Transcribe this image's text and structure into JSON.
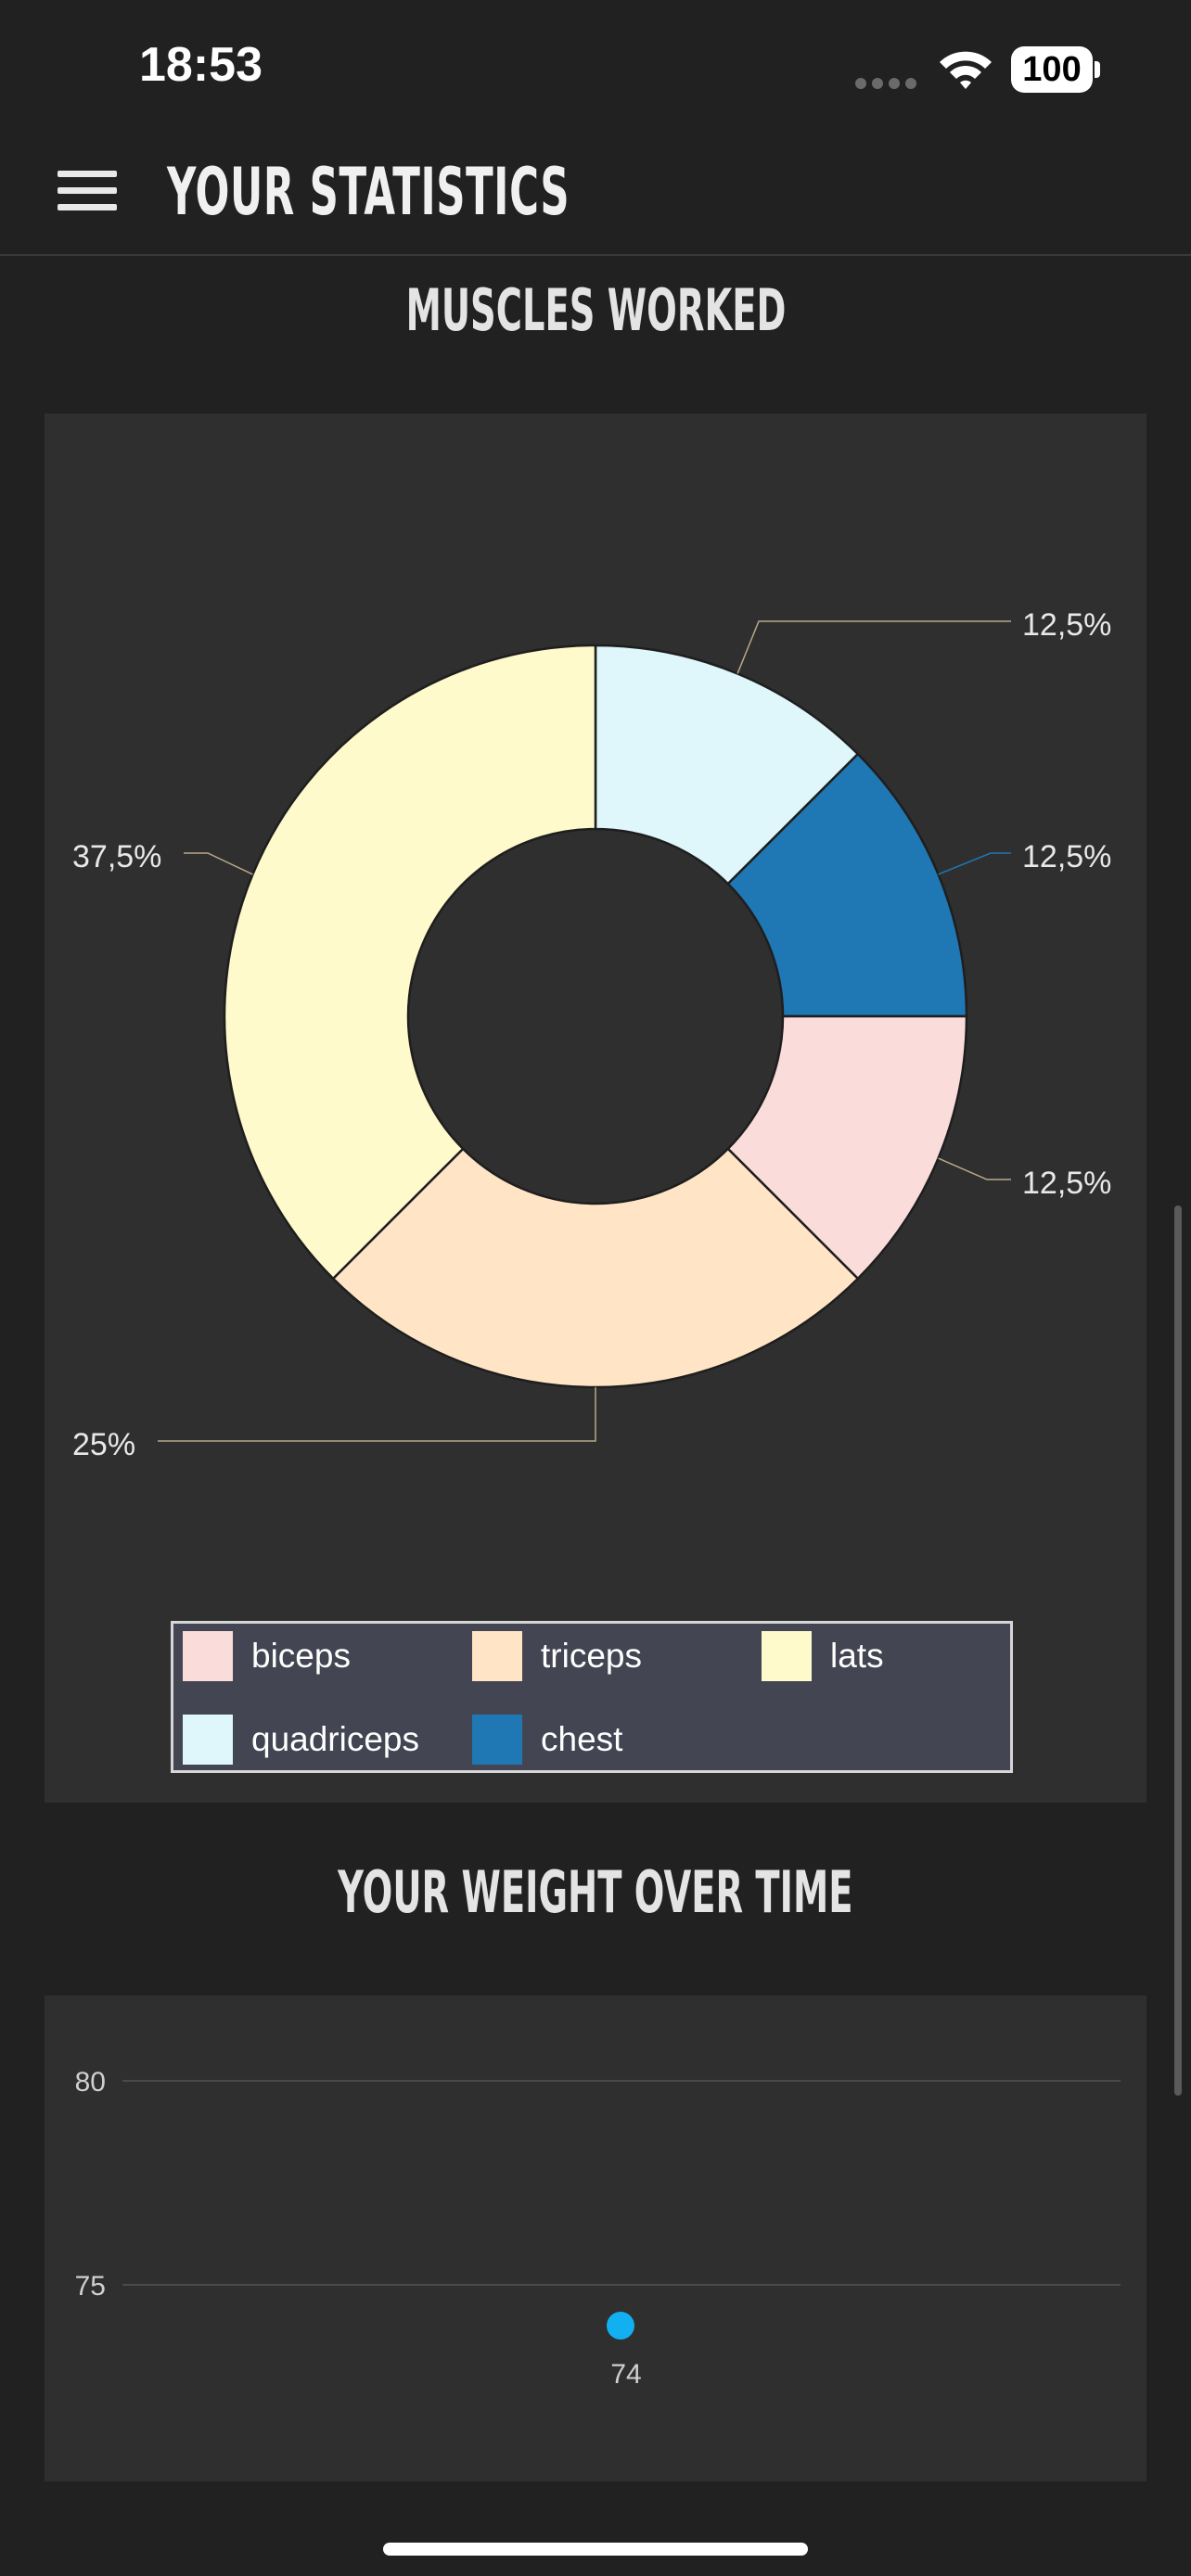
{
  "status_bar": {
    "time": "18:53",
    "battery": "100"
  },
  "header": {
    "title": "YOUR STATISTICS"
  },
  "muscles_section": {
    "title": "MUSCLES WORKED"
  },
  "weight_section": {
    "title": "YOUR WEIGHT OVER TIME"
  },
  "colors": {
    "biceps": "#fadcda",
    "triceps": "#ffe5c5",
    "lats": "#fffacb",
    "quadriceps": "#dff6fa",
    "chest": "#1f77b4",
    "weight_point": "#12b0f0"
  },
  "chart_data": [
    {
      "type": "pie",
      "variant": "donut",
      "categories": [
        "quadriceps",
        "chest",
        "biceps",
        "triceps",
        "lats"
      ],
      "values": [
        12.5,
        12.5,
        12.5,
        25,
        37.5
      ],
      "labels": [
        "12,5%",
        "12,5%",
        "12,5%",
        "25%",
        "37,5%"
      ],
      "legend": [
        "biceps",
        "triceps",
        "lats",
        "quadriceps",
        "chest"
      ],
      "legend_position": "bottom"
    },
    {
      "type": "scatter",
      "yticks": [
        80,
        75
      ],
      "points": [
        {
          "y": 74,
          "label": "74"
        }
      ],
      "ylim": [
        73,
        81
      ],
      "grid": true
    }
  ]
}
